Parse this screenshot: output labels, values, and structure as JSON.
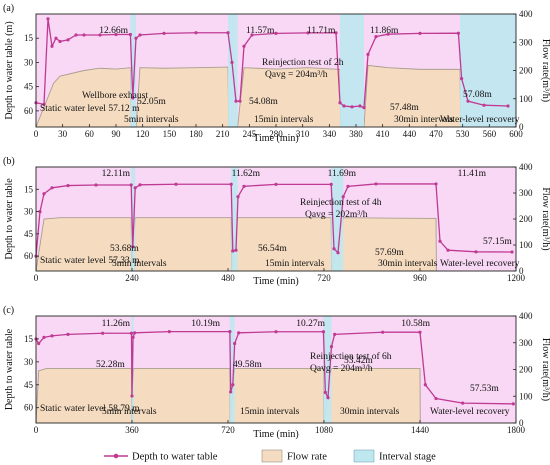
{
  "legend": {
    "depth": "Depth to water table",
    "flow": "Flow rate",
    "interval": "Interval stage",
    "colors": {
      "depth": "#c03a94",
      "flow_fill": "#f5dcc0",
      "flow_line": "#a89e90",
      "interval": "#bfe7f0",
      "pump_bg": "#f8d8f4"
    }
  },
  "chart_data": [
    {
      "type": "line",
      "panel": "(a)",
      "ylabel_left": "Depth to water table (m)",
      "ylabel_right": "Flow rate(m³/h)",
      "xlabel": "Time (min)",
      "xlim": [
        0,
        600
      ],
      "ylim_left": [
        70,
        0
      ],
      "ylim_right": [
        0,
        400
      ],
      "xticks": [
        "0",
        "30",
        "60",
        "90",
        "120",
        "150",
        "180",
        "210",
        "245",
        "280",
        "310",
        "340",
        "380",
        "410",
        "440",
        "470",
        "530",
        "560",
        "600"
      ],
      "yticks_left": [
        "15",
        "30",
        "45",
        "60"
      ],
      "yticks_right": [
        "0",
        "100",
        "200",
        "300",
        "400"
      ],
      "intervals": [
        [
          118,
          125
        ],
        [
          240,
          252
        ],
        [
          380,
          410
        ],
        [
          530,
          600
        ]
      ],
      "series": [
        {
          "name": "Depth to water table",
          "x": [
            0,
            10,
            15,
            20,
            25,
            30,
            40,
            50,
            60,
            80,
            100,
            118,
            121,
            125,
            130,
            160,
            200,
            240,
            245,
            250,
            255,
            260,
            270,
            300,
            340,
            375,
            380,
            385,
            395,
            405,
            410,
            415,
            425,
            440,
            480,
            528,
            532,
            540,
            560,
            590
          ],
          "y": [
            55,
            56,
            3,
            20,
            15,
            17,
            16,
            13,
            13,
            13,
            12.7,
            12.7,
            52,
            15,
            13,
            12,
            11.6,
            11.6,
            30,
            54,
            54,
            20,
            13,
            12,
            11.7,
            11.7,
            55,
            57,
            57.5,
            57,
            58,
            25,
            14,
            12.5,
            12,
            11.9,
            40,
            54,
            56.5,
            57
          ]
        },
        {
          "name": "Flow rate",
          "x": [
            0,
            22,
            30,
            60,
            80,
            100,
            118,
            119,
            125,
            130,
            160,
            200,
            240,
            241,
            252,
            260,
            300,
            340,
            380,
            381,
            410,
            415,
            440,
            480,
            530,
            531
          ],
          "y": [
            0,
            155,
            180,
            200,
            208,
            205,
            210,
            0,
            0,
            210,
            208,
            210,
            212,
            0,
            0,
            210,
            205,
            210,
            204,
            0,
            0,
            218,
            210,
            204,
            204,
            0
          ]
        }
      ],
      "annotations": [
        "12.66m",
        "11.57m",
        "11.71m",
        "11.86m",
        "52.05m",
        "54.08m",
        "57.48m",
        "57.08m",
        "Wellbore exhaust",
        "Static water level 57.12 m",
        "5min intervals",
        "15min intervals",
        "30min intervals",
        "Water-level recovery",
        "Reinjection test of 2h",
        "Qavg = 204m³/h"
      ]
    },
    {
      "type": "line",
      "panel": "(b)",
      "ylabel_left": "Depth to water table",
      "ylabel_right": "Flow rate(m³/h)",
      "xlabel": "Time (min)",
      "xlim": [
        0,
        1200
      ],
      "ylim_left": [
        70,
        0
      ],
      "ylim_right": [
        0,
        400
      ],
      "xticks": [
        "0",
        "240",
        "480",
        "720",
        "960",
        "1200"
      ],
      "yticks_left": [
        "15",
        "30",
        "45",
        "60"
      ],
      "yticks_right": [
        "0",
        "100",
        "200",
        "300",
        "400"
      ],
      "intervals": [
        [
          238,
          248
        ],
        [
          488,
          504
        ],
        [
          738,
          768
        ]
      ],
      "series": [
        {
          "name": "Depth to water table",
          "x": [
            0,
            10,
            20,
            40,
            80,
            150,
            238,
            242,
            248,
            260,
            350,
            488,
            492,
            500,
            505,
            520,
            600,
            738,
            745,
            755,
            768,
            780,
            850,
            1000,
            1010,
            1030,
            1100,
            1190
          ],
          "y": [
            60,
            30,
            18,
            14,
            12.5,
            12.1,
            12.1,
            53.7,
            14,
            12,
            11.6,
            11.6,
            56.5,
            56,
            20,
            13,
            11.7,
            11.7,
            55,
            57.7,
            20,
            13,
            11.4,
            11.4,
            50,
            56,
            57.1,
            57.2
          ]
        },
        {
          "name": "Flow rate",
          "x": [
            0,
            20,
            60,
            238,
            239,
            248,
            488,
            489,
            504,
            738,
            739,
            768,
            1000,
            1001
          ],
          "y": [
            0,
            200,
            205,
            205,
            0,
            205,
            205,
            0,
            205,
            205,
            0,
            205,
            202,
            0
          ]
        }
      ],
      "annotations": [
        "12.11m",
        "11.62m",
        "11.69m",
        "11.41m",
        "53.68m",
        "56.54m",
        "57.69m",
        "57.15m",
        "Static water level 57.33 m",
        "5min intervals",
        "15min intervals",
        "30min intervals",
        "Water-level recovery",
        "Reinjection test of 4h",
        "Qavg = 202m³/h"
      ]
    },
    {
      "type": "line",
      "panel": "(c)",
      "ylabel_left": "Depth to water table",
      "ylabel_right": "Flow rate(m³/h)",
      "xlabel": "Time (min)",
      "xlim": [
        0,
        1800
      ],
      "ylim_left": [
        70,
        0
      ],
      "ylim_right": [
        0,
        400
      ],
      "xticks": [
        "0",
        "360",
        "720",
        "1080",
        "1440",
        "1800"
      ],
      "yticks_left": [
        "15",
        "30",
        "45",
        "60"
      ],
      "yticks_right": [
        "0",
        "100",
        "200",
        "300",
        "400"
      ],
      "intervals": [
        [
          358,
          366
        ],
        [
          727,
          745
        ],
        [
          1078,
          1108
        ]
      ],
      "series": [
        {
          "name": "Depth to water table",
          "x": [
            0,
            10,
            30,
            60,
            120,
            250,
            358,
            360,
            364,
            370,
            500,
            727,
            730,
            738,
            745,
            760,
            900,
            1078,
            1085,
            1095,
            1108,
            1120,
            1300,
            1440,
            1460,
            1500,
            1600,
            1790
          ],
          "y": [
            15,
            18,
            14,
            13,
            12,
            11.3,
            11.3,
            52.3,
            14,
            11,
            10.2,
            10.2,
            49.6,
            45,
            18,
            11,
            10.3,
            10.3,
            50,
            53.4,
            20,
            12,
            10.6,
            10.6,
            45,
            54,
            57,
            57.5
          ]
        },
        {
          "name": "Flow rate",
          "x": [
            0,
            10,
            40,
            358,
            359,
            366,
            727,
            728,
            745,
            1078,
            1079,
            1108,
            1440,
            1441
          ],
          "y": [
            0,
            195,
            204,
            204,
            0,
            204,
            204,
            0,
            204,
            204,
            0,
            204,
            204,
            0
          ]
        }
      ],
      "annotations": [
        "11.26m",
        "10.19m",
        "10.27m",
        "10.58m",
        "52.28m",
        "49.58m",
        "53.42m",
        "57.53m",
        "Static water level 58.79 m",
        "5min intervals",
        "15min intervals",
        "30min intervals",
        "Water-level recovery",
        "Reinjection test of 6h",
        "Qavg = 204m³/h"
      ]
    }
  ]
}
